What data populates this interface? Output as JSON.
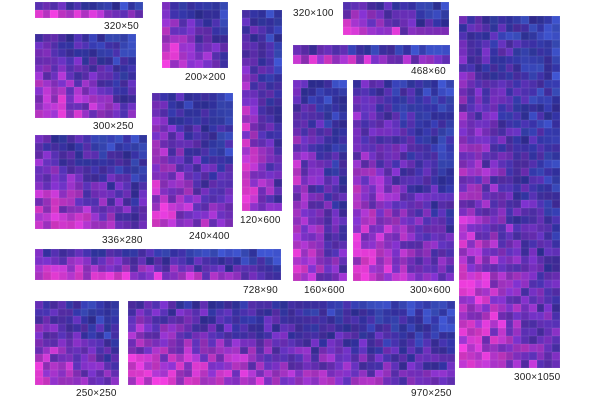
{
  "palette": {
    "light": "#e23ad2",
    "mid": "#7b2fc4",
    "dark": "#302f9b",
    "blue": "#3b4fc4",
    "background": "#ffffff",
    "label": "#222222"
  },
  "banners": [
    {
      "key": "b320x50",
      "label": "320×50"
    },
    {
      "key": "b200x200",
      "label": "200×200"
    },
    {
      "key": "b120x600",
      "label": "120×600"
    },
    {
      "key": "b320x100",
      "label": "320×100"
    },
    {
      "key": "b468x60",
      "label": "468×60"
    },
    {
      "key": "b300x250",
      "label": "300×250"
    },
    {
      "key": "b336x280",
      "label": "336×280"
    },
    {
      "key": "b240x400",
      "label": "240×400"
    },
    {
      "key": "b160x600",
      "label": "160×600"
    },
    {
      "key": "b300x600",
      "label": "300×600"
    },
    {
      "key": "b728x90",
      "label": "728×90"
    },
    {
      "key": "b300x1050",
      "label": "300×1050"
    },
    {
      "key": "b250x250",
      "label": "250×250"
    },
    {
      "key": "b970x250",
      "label": "970×250"
    }
  ]
}
